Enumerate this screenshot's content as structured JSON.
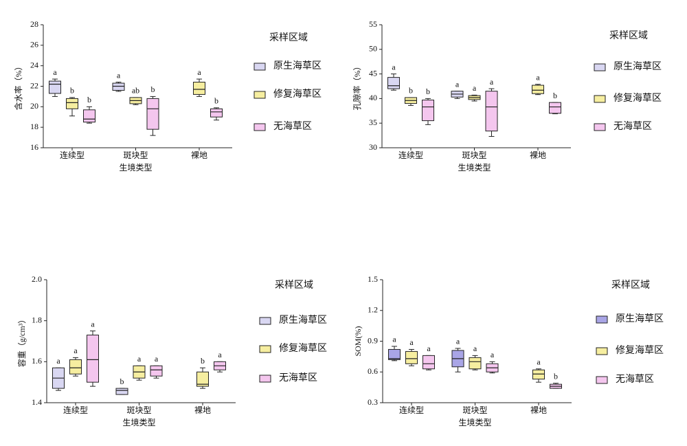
{
  "chart_data": [
    {
      "type": "box",
      "y_label": "含水率（%）",
      "x_label": "生境类型",
      "legend_title": "采样区域",
      "categories": [
        "连续型",
        "斑块型",
        "裸地"
      ],
      "ylim": [
        16,
        28
      ],
      "yticks": [
        16,
        18,
        20,
        22,
        24,
        26,
        28
      ],
      "series": [
        {
          "name": "原生海草区",
          "color": "#d9d7f2",
          "min": [
            21.0,
            21.5,
            null
          ],
          "q1": [
            21.3,
            21.6,
            null
          ],
          "median": [
            22.2,
            22.0,
            null
          ],
          "q3": [
            22.5,
            22.3,
            null
          ],
          "max": [
            22.7,
            22.4,
            null
          ],
          "letters": [
            "a",
            "a",
            null
          ]
        },
        {
          "name": "修复海草区",
          "color": "#f6eea0",
          "min": [
            19.1,
            20.2,
            21.0
          ],
          "q1": [
            19.8,
            20.3,
            21.2
          ],
          "median": [
            20.4,
            20.6,
            21.7
          ],
          "q3": [
            20.8,
            20.9,
            22.4
          ],
          "max": [
            20.9,
            20.9,
            22.7
          ],
          "letters": [
            "b",
            "ab",
            "a"
          ]
        },
        {
          "name": "无海草区",
          "color": "#f4c6ee",
          "min": [
            18.4,
            17.2,
            18.7
          ],
          "q1": [
            18.5,
            17.8,
            19.0
          ],
          "median": [
            18.8,
            19.8,
            19.5
          ],
          "q3": [
            19.7,
            20.8,
            19.8
          ],
          "max": [
            20.0,
            21.0,
            19.9
          ],
          "letters": [
            "b",
            "b",
            "b"
          ]
        }
      ]
    },
    {
      "type": "box",
      "y_label": "孔隙率（%）",
      "x_label": "生境类型",
      "legend_title": "采样区域",
      "categories": [
        "连续型",
        "斑块型",
        "裸地"
      ],
      "ylim": [
        30,
        55
      ],
      "yticks": [
        30,
        35,
        40,
        45,
        50,
        55
      ],
      "series": [
        {
          "name": "原生海草区",
          "color": "#d9d7f2",
          "min": [
            41.7,
            40.0,
            null
          ],
          "q1": [
            42.0,
            40.3,
            null
          ],
          "median": [
            42.6,
            40.9,
            null
          ],
          "q3": [
            44.3,
            41.5,
            null
          ],
          "max": [
            45.0,
            41.5,
            null
          ],
          "letters": [
            "a",
            "a",
            null
          ]
        },
        {
          "name": "修复海草区",
          "color": "#f6eea0",
          "min": [
            38.6,
            39.5,
            40.8
          ],
          "q1": [
            39.0,
            39.8,
            41.0
          ],
          "median": [
            39.6,
            40.2,
            41.7
          ],
          "q3": [
            40.2,
            40.6,
            42.7
          ],
          "max": [
            40.2,
            40.7,
            42.9
          ],
          "letters": [
            "b",
            "a",
            "a"
          ]
        },
        {
          "name": "无海草区",
          "color": "#f4c6ee",
          "min": [
            34.7,
            32.3,
            36.9
          ],
          "q1": [
            35.5,
            33.4,
            37.0
          ],
          "median": [
            38.3,
            38.3,
            38.3
          ],
          "q3": [
            39.7,
            41.5,
            39.2
          ],
          "max": [
            40.0,
            42.0,
            39.2
          ],
          "letters": [
            "b",
            "a",
            "b"
          ]
        }
      ]
    },
    {
      "type": "box",
      "y_label": "容重（g/cm³）",
      "x_label": "生境类型",
      "legend_title": "采样区域",
      "categories": [
        "连续型",
        "斑块型",
        "裸地"
      ],
      "ylim": [
        1.4,
        2.0
      ],
      "yticks": [
        1.4,
        1.6,
        1.8,
        {
          "value": 2,
          "label": "2.0"
        }
      ],
      "series": [
        {
          "name": "原生海草区",
          "color": "#d9d7f2",
          "min": [
            1.46,
            1.44,
            null
          ],
          "q1": [
            1.47,
            1.44,
            null
          ],
          "median": [
            1.52,
            1.46,
            null
          ],
          "q3": [
            1.57,
            1.47,
            null
          ],
          "max": [
            1.57,
            1.47,
            null
          ],
          "letters": [
            "a",
            "b",
            null
          ]
        },
        {
          "name": "修复海草区",
          "color": "#f6eea0",
          "min": [
            1.53,
            1.51,
            1.47
          ],
          "q1": [
            1.54,
            1.52,
            1.48
          ],
          "median": [
            1.57,
            1.55,
            1.49
          ],
          "q3": [
            1.61,
            1.58,
            1.55
          ],
          "max": [
            1.62,
            1.58,
            1.57
          ],
          "letters": [
            "a",
            "a",
            "b"
          ]
        },
        {
          "name": "无海草区",
          "color": "#f4c6ee",
          "min": [
            1.48,
            1.52,
            1.55
          ],
          "q1": [
            1.5,
            1.53,
            1.56
          ],
          "median": [
            1.61,
            1.56,
            1.58
          ],
          "q3": [
            1.73,
            1.58,
            1.6
          ],
          "max": [
            1.75,
            1.58,
            1.6
          ],
          "letters": [
            "a",
            "a",
            "a"
          ]
        }
      ]
    },
    {
      "type": "box",
      "y_label": "SOM(%)",
      "x_label": "生境类型",
      "legend_title": "采样区域",
      "categories": [
        "连续型",
        "斑块型",
        "裸地"
      ],
      "ylim": [
        0.3,
        1.5
      ],
      "yticks": [
        0.3,
        0.6,
        0.9,
        1.2,
        1.5
      ],
      "series": [
        {
          "name": "原生海草区",
          "color": "#a9a5e6",
          "min": [
            0.71,
            0.6,
            null
          ],
          "q1": [
            0.72,
            0.65,
            null
          ],
          "median": [
            0.73,
            0.73,
            null
          ],
          "q3": [
            0.82,
            0.81,
            null
          ],
          "max": [
            0.85,
            0.83,
            null
          ],
          "letters": [
            "a",
            "a",
            null
          ]
        },
        {
          "name": "修复海草区",
          "color": "#f6eea0",
          "min": [
            0.66,
            0.62,
            0.5
          ],
          "q1": [
            0.68,
            0.63,
            0.53
          ],
          "median": [
            0.73,
            0.7,
            0.58
          ],
          "q3": [
            0.8,
            0.74,
            0.62
          ],
          "max": [
            0.82,
            0.76,
            0.63
          ],
          "letters": [
            "a",
            "a",
            "a"
          ]
        },
        {
          "name": "无海草区",
          "color": "#f4c6ee",
          "min": [
            0.62,
            0.59,
            0.44
          ],
          "q1": [
            0.63,
            0.6,
            0.44
          ],
          "median": [
            0.68,
            0.64,
            0.46
          ],
          "q3": [
            0.76,
            0.68,
            0.48
          ],
          "max": [
            0.76,
            0.7,
            0.49
          ],
          "letters": [
            "a",
            "a",
            "b"
          ]
        }
      ]
    }
  ]
}
